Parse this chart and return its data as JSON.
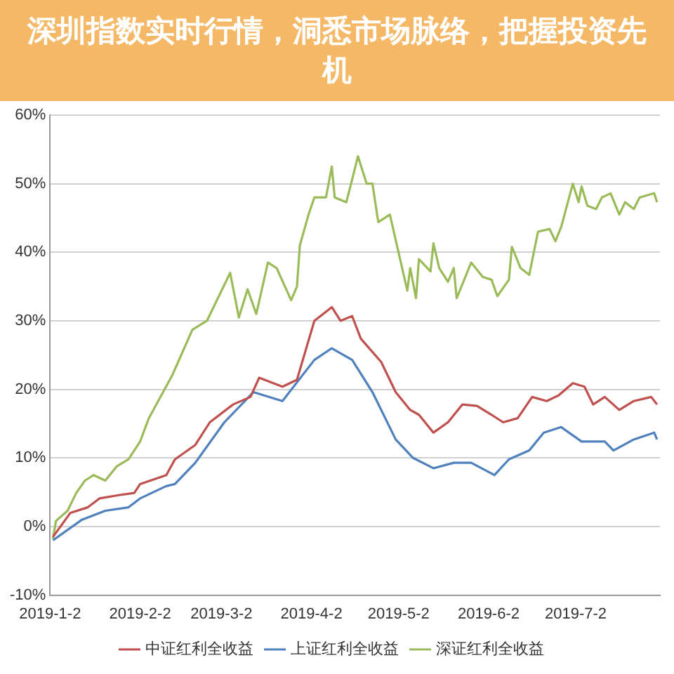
{
  "chart_data": {
    "type": "line",
    "title": "深圳指数实时行情，洞悉市场脉络，把握投资先机",
    "xlim": [
      "2019-01-02",
      "2019-07-31"
    ],
    "xticks": [
      {
        "value": "2019-01-02",
        "label": "2019-1-2"
      },
      {
        "value": "2019-02-02",
        "label": "2019-2-2"
      },
      {
        "value": "2019-03-02",
        "label": "2019-3-2"
      },
      {
        "value": "2019-04-02",
        "label": "2019-4-2"
      },
      {
        "value": "2019-05-02",
        "label": "2019-5-2"
      },
      {
        "value": "2019-06-02",
        "label": "2019-6-2"
      },
      {
        "value": "2019-07-02",
        "label": "2019-7-2"
      }
    ],
    "ylim": [
      -10,
      60
    ],
    "yticks": [
      {
        "value": -10,
        "label": "-10%"
      },
      {
        "value": 0,
        "label": "0%"
      },
      {
        "value": 10,
        "label": "10%"
      },
      {
        "value": 20,
        "label": "20%"
      },
      {
        "value": 30,
        "label": "30%"
      },
      {
        "value": 40,
        "label": "40%"
      },
      {
        "value": 50,
        "label": "50%"
      },
      {
        "value": 60,
        "label": "60%"
      }
    ],
    "grid": "y",
    "legend": "bottom",
    "marker": "none",
    "line_style": "solid",
    "series": [
      {
        "name": "中证红利全收益",
        "color": "#c0504d",
        "x": [
          "2019-01-03",
          "2019-01-09",
          "2019-01-15",
          "2019-01-19",
          "2019-01-26",
          "2019-01-31",
          "2019-02-02",
          "2019-02-11",
          "2019-02-14",
          "2019-02-21",
          "2019-02-26",
          "2019-03-06",
          "2019-03-12",
          "2019-03-15",
          "2019-03-23",
          "2019-03-28",
          "2019-04-03",
          "2019-04-09",
          "2019-04-12",
          "2019-04-16",
          "2019-04-19",
          "2019-04-26",
          "2019-05-01",
          "2019-05-06",
          "2019-05-09",
          "2019-05-14",
          "2019-05-19",
          "2019-05-24",
          "2019-05-29",
          "2019-06-03",
          "2019-06-07",
          "2019-06-12",
          "2019-06-17",
          "2019-06-22",
          "2019-06-26",
          "2019-07-01",
          "2019-07-05",
          "2019-07-08",
          "2019-07-12",
          "2019-07-17",
          "2019-07-22",
          "2019-07-28",
          "2019-07-30"
        ],
        "values": [
          -1.5,
          2,
          2.8,
          4.1,
          4.6,
          4.9,
          6.2,
          7.5,
          9.8,
          11.9,
          15.2,
          17.8,
          18.9,
          21.7,
          20.4,
          21.4,
          30,
          32,
          30,
          30.7,
          27.4,
          24,
          19.6,
          17,
          16.3,
          13.7,
          15.2,
          17.8,
          17.6,
          16.3,
          15.2,
          15.8,
          18.9,
          18.3,
          19.1,
          20.9,
          20.4,
          17.8,
          18.9,
          17,
          18.3,
          18.9,
          17.8
        ]
      },
      {
        "name": "上证红利全收益",
        "color": "#4f81bd",
        "x": [
          "2019-01-03",
          "2019-01-13",
          "2019-01-21",
          "2019-01-29",
          "2019-02-02",
          "2019-02-11",
          "2019-02-14",
          "2019-02-21",
          "2019-03-03",
          "2019-03-13",
          "2019-03-23",
          "2019-04-03",
          "2019-04-09",
          "2019-04-16",
          "2019-04-23",
          "2019-05-01",
          "2019-05-07",
          "2019-05-14",
          "2019-05-21",
          "2019-05-27",
          "2019-06-04",
          "2019-06-09",
          "2019-06-16",
          "2019-06-21",
          "2019-06-27",
          "2019-07-04",
          "2019-07-12",
          "2019-07-15",
          "2019-07-22",
          "2019-07-29",
          "2019-07-30"
        ],
        "values": [
          -2,
          1,
          2.3,
          2.8,
          4.1,
          5.9,
          6.2,
          9.3,
          15.2,
          19.6,
          18.3,
          24.3,
          26,
          24.3,
          19.6,
          12.7,
          10,
          8.5,
          9.3,
          9.3,
          7.5,
          9.8,
          11.1,
          13.7,
          14.5,
          12.4,
          12.4,
          11.1,
          12.7,
          13.7,
          12.7
        ]
      },
      {
        "name": "深证红利全收益",
        "color": "#9bbb59",
        "x": [
          "2019-01-03",
          "2019-01-04",
          "2019-01-08",
          "2019-01-11",
          "2019-01-14",
          "2019-01-17",
          "2019-01-21",
          "2019-01-25",
          "2019-01-29",
          "2019-02-02",
          "2019-02-05",
          "2019-02-13",
          "2019-02-20",
          "2019-02-25",
          "2019-03-05",
          "2019-03-08",
          "2019-03-11",
          "2019-03-14",
          "2019-03-18",
          "2019-03-21",
          "2019-03-26",
          "2019-03-28",
          "2019-03-29",
          "2019-04-01",
          "2019-04-03",
          "2019-04-07",
          "2019-04-09",
          "2019-04-10",
          "2019-04-14",
          "2019-04-16",
          "2019-04-18",
          "2019-04-21",
          "2019-04-23",
          "2019-04-25",
          "2019-04-29",
          "2019-05-05",
          "2019-05-06",
          "2019-05-08",
          "2019-05-09",
          "2019-05-13",
          "2019-05-14",
          "2019-05-16",
          "2019-05-19",
          "2019-05-21",
          "2019-05-22",
          "2019-05-27",
          "2019-05-31",
          "2019-06-03",
          "2019-06-05",
          "2019-06-09",
          "2019-06-10",
          "2019-06-13",
          "2019-06-16",
          "2019-06-19",
          "2019-06-23",
          "2019-06-25",
          "2019-06-27",
          "2019-07-01",
          "2019-07-03",
          "2019-07-04",
          "2019-07-06",
          "2019-07-09",
          "2019-07-11",
          "2019-07-14",
          "2019-07-17",
          "2019-07-19",
          "2019-07-22",
          "2019-07-24",
          "2019-07-29",
          "2019-07-30"
        ],
        "values": [
          -1.8,
          0.8,
          2.3,
          4.9,
          6.7,
          7.5,
          6.7,
          8.8,
          9.8,
          12.4,
          15.8,
          22,
          28.7,
          30,
          37,
          30.5,
          34.6,
          31,
          38.5,
          37.7,
          33,
          35,
          41,
          45.5,
          48,
          48,
          52.5,
          48,
          47.3,
          50.6,
          54,
          50,
          50,
          44.4,
          45.5,
          34.4,
          37.7,
          33.3,
          39,
          37.2,
          41.3,
          37.7,
          35.7,
          37.7,
          33.3,
          38.5,
          36.4,
          36,
          33.6,
          36,
          40.8,
          37.7,
          36.7,
          43,
          43.4,
          41.6,
          43.7,
          50,
          47.3,
          49.6,
          46.8,
          46.3,
          48,
          48.6,
          45.5,
          47.3,
          46.3,
          48,
          48.6,
          47.3
        ]
      }
    ]
  }
}
